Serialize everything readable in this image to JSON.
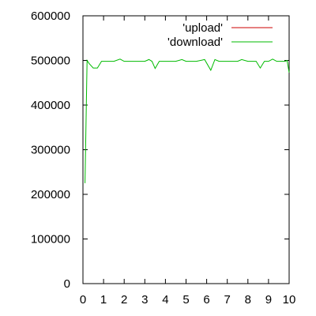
{
  "chart_data": {
    "type": "line",
    "xlim": [
      0,
      10
    ],
    "ylim": [
      0,
      600000
    ],
    "x_ticks": [
      0,
      1,
      2,
      3,
      4,
      5,
      6,
      7,
      8,
      9,
      10
    ],
    "y_ticks": [
      0,
      100000,
      200000,
      300000,
      400000,
      500000,
      600000
    ],
    "x_tick_labels": [
      "0",
      "1",
      "2",
      "3",
      "4",
      "5",
      "6",
      "7",
      "8",
      "9",
      "10"
    ],
    "y_tick_labels": [
      "0",
      "100000",
      "200000",
      "300000",
      "400000",
      "500000",
      "600000"
    ],
    "grid": false,
    "legend_position": "top-right",
    "series": [
      {
        "name": "'upload'",
        "color": "#cc0000",
        "x": [],
        "y": []
      },
      {
        "name": "'download'",
        "color": "#00bb00",
        "x": [
          0.1,
          0.2,
          0.3,
          0.5,
          0.7,
          0.9,
          1.5,
          1.8,
          2.0,
          2.5,
          3.0,
          3.2,
          3.35,
          3.5,
          3.7,
          4.0,
          4.5,
          4.8,
          5.0,
          5.5,
          5.9,
          6.2,
          6.4,
          6.6,
          7.0,
          7.5,
          7.7,
          8.0,
          8.4,
          8.6,
          8.8,
          9.0,
          9.2,
          9.4,
          9.6,
          9.8,
          9.9,
          10.0
        ],
        "y": [
          225000,
          500000,
          493000,
          483000,
          483000,
          498000,
          498000,
          503000,
          498000,
          498000,
          498000,
          502000,
          498000,
          482000,
          498000,
          498000,
          498000,
          502000,
          498000,
          498000,
          502000,
          478000,
          502000,
          498000,
          498000,
          498000,
          502000,
          498000,
          498000,
          483000,
          498000,
          498000,
          503000,
          498000,
          498000,
          498000,
          500000,
          473000
        ]
      }
    ]
  }
}
